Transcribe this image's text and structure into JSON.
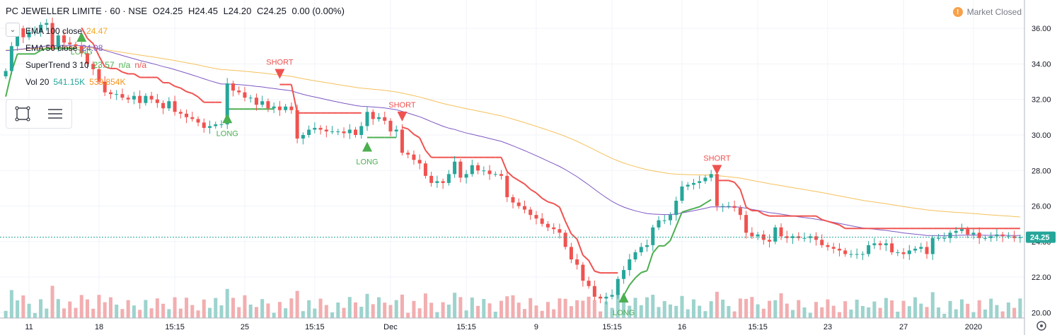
{
  "header": {
    "symbol": "PC JEWELLER LIMITE · 60 · NSE",
    "open": "O24.25",
    "high": "H24.45",
    "low": "L24.20",
    "close": "C24.25",
    "change": "0.00 (0.00%)"
  },
  "legend": [
    {
      "name": "EMA 100 close",
      "values": [
        "24.47"
      ],
      "colors": [
        "#f5a623"
      ]
    },
    {
      "name": "EMA 50 close",
      "values": [
        "24.08"
      ],
      "colors": [
        "#7e57c2"
      ]
    },
    {
      "name": "SuperTrend 3 10",
      "values": [
        "23.57",
        "n/a",
        "n/a"
      ],
      "colors": [
        "#4caf50",
        "#4caf50",
        "#ef5350"
      ]
    },
    {
      "name": "Vol 20",
      "values": [
        "541.15K",
        "539.854K"
      ],
      "colors": [
        "#26a69a",
        "#f7931a"
      ]
    }
  ],
  "status": {
    "text": "Market Closed",
    "icon": "info-icon",
    "icon_glyph": "!"
  },
  "colors": {
    "up": "#26a69a",
    "down": "#ef5350",
    "ema100": "#f5c15c",
    "ema50": "#7e57c2",
    "st_up": "#4caf50",
    "st_down": "#ef5350",
    "price_tag": "#26a69a"
  },
  "chart_data": {
    "type": "candlestick",
    "title": "",
    "y_ticks": [
      "36.00",
      "34.00",
      "32.00",
      "30.00",
      "28.00",
      "26.00",
      "24.00",
      "22.00",
      "20.00"
    ],
    "x_ticks": [
      "11",
      "18",
      "15:15",
      "25",
      "15:15",
      "Dec",
      "15:15",
      "9",
      "15:15",
      "16",
      "15:15",
      "23",
      "27",
      "2020"
    ],
    "ylim": [
      19.7,
      36.8
    ],
    "last_price": "24.25",
    "grid": true,
    "close": [
      33.6,
      35.0,
      36.0,
      35.5,
      35.8,
      35.8,
      36.2,
      36.3,
      34.9,
      35.6,
      35.2,
      35.1,
      35.0,
      34.6,
      34.0,
      33.7,
      33.0,
      32.4,
      32.3,
      32.3,
      32.1,
      32.0,
      32.2,
      31.8,
      32.2,
      32.0,
      31.8,
      31.5,
      31.9,
      31.3,
      31.2,
      31.0,
      30.9,
      30.7,
      30.4,
      30.5,
      30.6,
      30.6,
      32.9,
      32.5,
      32.4,
      32.1,
      32.1,
      31.7,
      31.9,
      31.5,
      31.6,
      31.4,
      31.6,
      31.4,
      29.8,
      30.0,
      30.3,
      30.4,
      30.3,
      30.2,
      30.2,
      30.2,
      30.1,
      30.3,
      30.0,
      30.5,
      31.3,
      30.9,
      31.0,
      30.8,
      30.2,
      30.3,
      29.0,
      28.9,
      28.6,
      28.4,
      27.7,
      27.3,
      27.4,
      27.3,
      27.8,
      28.5,
      27.6,
      27.8,
      28.3,
      28.0,
      28.0,
      27.8,
      27.8,
      27.7,
      26.5,
      26.2,
      26.0,
      25.8,
      25.5,
      25.3,
      25.0,
      24.8,
      24.7,
      24.5,
      23.7,
      23.0,
      22.7,
      21.8,
      21.5,
      20.9,
      20.8,
      20.9,
      21.0,
      21.9,
      22.4,
      23.0,
      23.4,
      23.7,
      23.8,
      24.8,
      25.2,
      25.2,
      25.5,
      26.3,
      27.1,
      27.2,
      27.3,
      27.4,
      27.6,
      27.8,
      26.0,
      26.0,
      26.0,
      25.9,
      25.5,
      24.5,
      24.3,
      24.4,
      24.1,
      24.0,
      24.8,
      24.3,
      24.2,
      24.3,
      24.2,
      24.2,
      24.3,
      24.1,
      23.8,
      23.7,
      23.6,
      23.5,
      23.3,
      23.3,
      23.3,
      23.3,
      23.8,
      23.9,
      23.8,
      23.9,
      23.4,
      23.4,
      23.3,
      23.5,
      23.6,
      23.7,
      23.3,
      24.2,
      24.2,
      24.2,
      24.5,
      24.6,
      24.7,
      24.4,
      24.5,
      24.2,
      24.2,
      24.3,
      24.4,
      24.3,
      24.3,
      24.2,
      24.25
    ],
    "volume_up": [],
    "signals": [
      {
        "type": "LONG",
        "label": "LONG"
      },
      {
        "type": "LONG",
        "label": "LONG"
      },
      {
        "type": "SHORT",
        "label": "SHORT"
      },
      {
        "type": "LONG",
        "label": "LONG"
      },
      {
        "type": "SHORT",
        "label": "SHORT"
      },
      {
        "type": "LONG",
        "label": "LONG"
      },
      {
        "type": "SHORT",
        "label": "SHORT"
      },
      {
        "type": "LONG",
        "label": "LONG"
      },
      {
        "type": "SHORT",
        "label": "SHORT"
      }
    ]
  }
}
